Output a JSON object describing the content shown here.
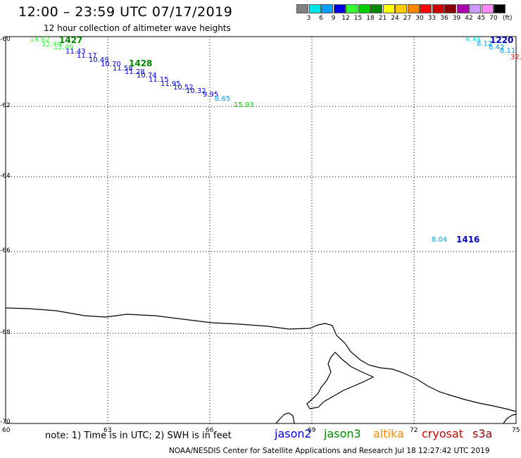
{
  "header": {
    "title": "12:00 – 23:59 UTC 07/17/2019",
    "subtitle": "12 hour collection of altimeter wave heights"
  },
  "color_scale": {
    "unit_label": "(ft)",
    "bins": [
      {
        "label": "3",
        "color": "#808080"
      },
      {
        "label": "6",
        "color": "#00e5e5"
      },
      {
        "label": "9",
        "color": "#00a0ff"
      },
      {
        "label": "12",
        "color": "#0000e0"
      },
      {
        "label": "15",
        "color": "#33ff33"
      },
      {
        "label": "18",
        "color": "#00cc00"
      },
      {
        "label": "21",
        "color": "#008800"
      },
      {
        "label": "24",
        "color": "#ffff00"
      },
      {
        "label": "27",
        "color": "#ffcc00"
      },
      {
        "label": "30",
        "color": "#ff8800"
      },
      {
        "label": "33",
        "color": "#ff0000"
      },
      {
        "label": "36",
        "color": "#cc0000"
      },
      {
        "label": "39",
        "color": "#880000"
      },
      {
        "label": "42",
        "color": "#aa00aa"
      },
      {
        "label": "45",
        "color": "#cc99ff"
      },
      {
        "label": "70",
        "color": "#ff88ff"
      },
      {
        "label": "",
        "color": "#000000"
      }
    ]
  },
  "axes": {
    "lat_ticks": [
      "-60",
      "-62",
      "-64",
      "-66",
      "-68",
      "-70"
    ],
    "lon_ticks": [
      "60",
      "63",
      "66",
      "69",
      "72",
      "75"
    ]
  },
  "points": [
    {
      "text": "14.62",
      "color": "#33ff33"
    },
    {
      "text": "12.49",
      "color": "#33ff33"
    },
    {
      "text": "12.49",
      "color": "#33ff33"
    },
    {
      "text": "11.43",
      "color": "#0000e0"
    },
    {
      "text": "11.17",
      "color": "#0000e0"
    },
    {
      "text": "10.49",
      "color": "#0000e0"
    },
    {
      "text": "10.70",
      "color": "#0000e0"
    },
    {
      "text": "11.58",
      "color": "#0000e0"
    },
    {
      "text": "11.28",
      "color": "#0000e0"
    },
    {
      "text": "10.74",
      "color": "#0000e0"
    },
    {
      "text": "11.15",
      "color": "#0000e0"
    },
    {
      "text": "11.95",
      "color": "#0000e0"
    },
    {
      "text": "10.52",
      "color": "#0000e0"
    },
    {
      "text": "10.32",
      "color": "#0000e0"
    },
    {
      "text": "9.95",
      "color": "#0000e0"
    },
    {
      "text": "8.65",
      "color": "#00a0ff"
    },
    {
      "text": "15.93",
      "color": "#00cc00"
    },
    {
      "text": "4.44",
      "color": "#00e5e5"
    },
    {
      "text": "8.12",
      "color": "#00a0ff"
    },
    {
      "text": "8.42",
      "color": "#00a0ff"
    },
    {
      "text": "6.11",
      "color": "#00a0ff"
    },
    {
      "text": "32.",
      "color": "#ff0000"
    },
    {
      "text": "8.04",
      "color": "#00a0ff"
    }
  ],
  "passes": [
    {
      "text": "1427",
      "color": "#008800"
    },
    {
      "text": "1428",
      "color": "#008800"
    },
    {
      "text": "1220",
      "color": "#0000c0"
    },
    {
      "text": "1416",
      "color": "#0000c0"
    }
  ],
  "footer": {
    "note": "note:  1) Time is in UTC;  2) SWH is in feet",
    "satellites": [
      {
        "name": "jason2",
        "color": "#0000e0"
      },
      {
        "name": "jason3",
        "color": "#008800"
      },
      {
        "name": "altika",
        "color": "#ff8800"
      },
      {
        "name": "cryosat",
        "color": "#cc0000"
      },
      {
        "name": "s3a",
        "color": "#880000"
      }
    ],
    "credit": "NOAA/NESDIS Center for Satellite Applications and Research    Jul 18 12:27:42 UTC 2019"
  }
}
